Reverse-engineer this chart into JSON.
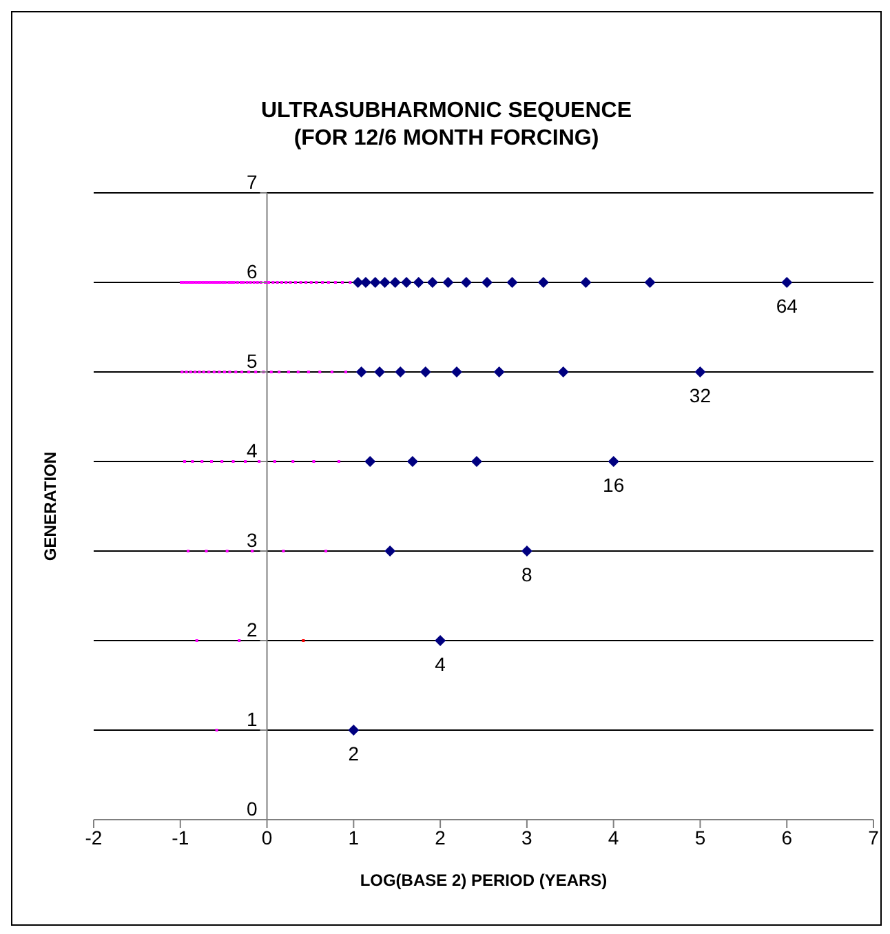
{
  "chart_data": {
    "type": "scatter",
    "title": "ULTRASUBHARMONIC SEQUENCE",
    "subtitle": "(FOR 12/6 MONTH FORCING)",
    "xlabel": "LOG(BASE 2) PERIOD (YEARS)",
    "ylabel": "GENERATION",
    "xlim": [
      -2,
      7
    ],
    "xticks": [
      -2,
      -1,
      0,
      1,
      2,
      3,
      4,
      5,
      6,
      7
    ],
    "ylim": [
      0,
      7
    ],
    "yticks": [
      0,
      1,
      2,
      3,
      4,
      5,
      6,
      7
    ],
    "grid": "y",
    "legend": false,
    "series": [
      {
        "color": "#000080",
        "marker": "diamond",
        "x": [
          1,
          2,
          3,
          1.42,
          4,
          2.42,
          1.68,
          1.19,
          5,
          3.42,
          2.68,
          2.19,
          1.83,
          1.54,
          1.3,
          1.09,
          6,
          4.42,
          3.68,
          3.19,
          2.83,
          2.54,
          2.3,
          2.09,
          1.91,
          1.75,
          1.61,
          1.48,
          1.36,
          1.25,
          1.14,
          1.05
        ],
        "values": [
          1,
          2,
          3,
          3,
          4,
          4,
          4,
          4,
          5,
          5,
          5,
          5,
          5,
          5,
          5,
          5,
          6,
          6,
          6,
          6,
          6,
          6,
          6,
          6,
          6,
          6,
          6,
          6,
          6,
          6,
          6,
          6
        ]
      },
      {
        "color": "#ff00ff",
        "marker": "square",
        "x": [
          -0.58,
          -0.32,
          -0.81,
          0.68,
          0.19,
          -0.17,
          -0.46,
          -0.7,
          -0.91,
          0.83,
          0.54,
          0.3,
          0.09,
          -0.09,
          -0.25,
          -0.39,
          -0.52,
          -0.64,
          -0.75,
          -0.86,
          -0.95,
          0.91,
          0.75,
          0.61,
          0.48,
          0.36,
          0.25,
          0.14,
          0.05,
          -0.04,
          -0.13,
          -0.21,
          -0.29,
          -0.36,
          -0.43,
          -0.49,
          -0.55,
          -0.61,
          -0.67,
          -0.73,
          -0.78,
          -0.83,
          -0.88,
          -0.93,
          -0.98,
          0.96,
          0.87,
          0.79,
          0.71,
          0.64,
          0.57,
          0.51,
          0.45,
          0.39,
          0.33,
          0.27,
          0.22,
          0.17,
          0.12,
          0.07,
          0.02,
          -0.02,
          -0.07,
          -0.11,
          -0.15,
          -0.19,
          -0.23,
          -0.27,
          -0.3,
          -0.34,
          -0.38,
          -0.41,
          -0.44,
          -0.48,
          -0.51,
          -0.54,
          -0.57,
          -0.6,
          -0.63,
          -0.66,
          -0.69,
          -0.71,
          -0.74,
          -0.77,
          -0.79,
          -0.82,
          -0.85,
          -0.87,
          -0.89,
          -0.92,
          -0.94,
          -0.97,
          -0.99
        ],
        "values": [
          1,
          2,
          2,
          3,
          3,
          3,
          3,
          3,
          3,
          4,
          4,
          4,
          4,
          4,
          4,
          4,
          4,
          4,
          4,
          4,
          4,
          5,
          5,
          5,
          5,
          5,
          5,
          5,
          5,
          5,
          5,
          5,
          5,
          5,
          5,
          5,
          5,
          5,
          5,
          5,
          5,
          5,
          5,
          5,
          5,
          6,
          6,
          6,
          6,
          6,
          6,
          6,
          6,
          6,
          6,
          6,
          6,
          6,
          6,
          6,
          6,
          6,
          6,
          6,
          6,
          6,
          6,
          6,
          6,
          6,
          6,
          6,
          6,
          6,
          6,
          6,
          6,
          6,
          6,
          6,
          6,
          6,
          6,
          6,
          6,
          6,
          6,
          6,
          6,
          6,
          6,
          6,
          6
        ]
      },
      {
        "color": "#ff0000",
        "marker": "square",
        "x": [
          0.42
        ],
        "values": [
          2
        ]
      }
    ],
    "annotations": [
      {
        "text": "2",
        "x": 1,
        "y": 1
      },
      {
        "text": "4",
        "x": 2,
        "y": 2
      },
      {
        "text": "8",
        "x": 3,
        "y": 3
      },
      {
        "text": "16",
        "x": 4,
        "y": 4
      },
      {
        "text": "32",
        "x": 5,
        "y": 5
      },
      {
        "text": "64",
        "x": 6,
        "y": 6
      }
    ]
  }
}
